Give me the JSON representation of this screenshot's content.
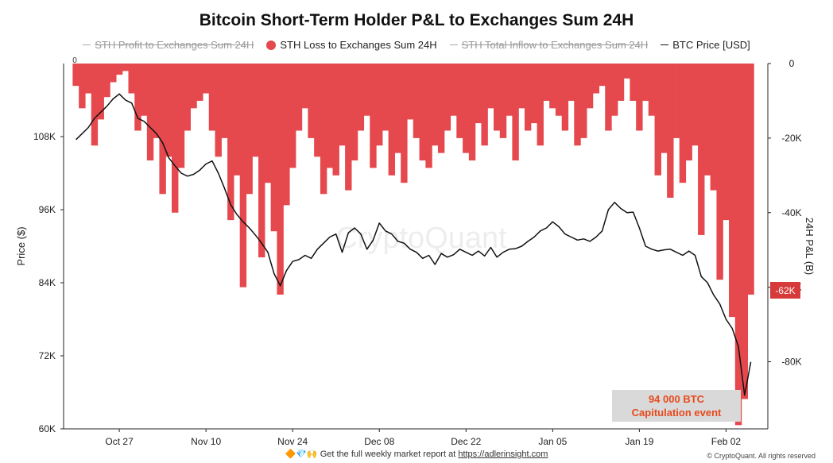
{
  "title": "Bitcoin Short-Term Holder P&L to Exchanges Sum 24H",
  "legend": [
    {
      "label": "STH Profit to Exchanges Sum 24H",
      "color": "#999999",
      "marker": "line",
      "hidden": true
    },
    {
      "label": "STH Loss to Exchanges Sum 24H",
      "color": "#e5484d",
      "marker": "dot",
      "hidden": false
    },
    {
      "label": "STH Total Inflow to  Exchanges Sum 24H",
      "color": "#999999",
      "marker": "line",
      "hidden": true
    },
    {
      "label": "BTC Price [USD]",
      "color": "#111111",
      "marker": "line",
      "hidden": false
    }
  ],
  "annotation": {
    "line1": "94 000 BTC",
    "line2": "Capitulation event",
    "color": "#e8491d"
  },
  "last_value_badge": "-62K",
  "watermark": "CryptoQuant",
  "footer": {
    "emoji": "🔶💎🙌",
    "text": "Get the full weekly market report at",
    "link": "https://adlerinsight.com"
  },
  "copyright": "© CryptoQuant. All rights reserved",
  "chart_data": {
    "type": "area",
    "title": "Bitcoin Short-Term Holder P&L to Exchanges Sum 24H",
    "xlabel": "",
    "x_ticks": [
      "Oct 27",
      "Nov 10",
      "Nov 24",
      "Dec 08",
      "Dec 22",
      "Jan 05",
      "Jan 19",
      "Feb 02"
    ],
    "y_left": {
      "label": "Price ($)",
      "ticks": [
        60000,
        72000,
        84000,
        96000,
        108000
      ],
      "tick_labels": [
        "60K",
        "72K",
        "84K",
        "96K",
        "108K"
      ],
      "range": [
        60000,
        120000
      ]
    },
    "y_right": {
      "label": "24H P&L (B)",
      "ticks": [
        0,
        -20000,
        -40000,
        -60000,
        -80000
      ],
      "tick_labels": [
        "0",
        "-20K",
        "-40K",
        "-60K",
        "-80K"
      ],
      "range": [
        -98000,
        0
      ]
    },
    "top_left_label": "0",
    "grid": false,
    "legend_position": "top-center",
    "dates": [
      "2025-10-20",
      "2025-10-21",
      "2025-10-22",
      "2025-10-23",
      "2025-10-24",
      "2025-10-25",
      "2025-10-26",
      "2025-10-27",
      "2025-10-28",
      "2025-10-29",
      "2025-10-30",
      "2025-10-31",
      "2025-11-01",
      "2025-11-02",
      "2025-11-03",
      "2025-11-04",
      "2025-11-05",
      "2025-11-06",
      "2025-11-07",
      "2025-11-08",
      "2025-11-09",
      "2025-11-10",
      "2025-11-11",
      "2025-11-12",
      "2025-11-13",
      "2025-11-14",
      "2025-11-15",
      "2025-11-16",
      "2025-11-17",
      "2025-11-18",
      "2025-11-19",
      "2025-11-20",
      "2025-11-21",
      "2025-11-22",
      "2025-11-23",
      "2025-11-24",
      "2025-11-25",
      "2025-11-26",
      "2025-11-27",
      "2025-11-28",
      "2025-11-29",
      "2025-11-30",
      "2025-12-01",
      "2025-12-02",
      "2025-12-03",
      "2025-12-04",
      "2025-12-05",
      "2025-12-06",
      "2025-12-07",
      "2025-12-08",
      "2025-12-09",
      "2025-12-10",
      "2025-12-11",
      "2025-12-12",
      "2025-12-13",
      "2025-12-14",
      "2025-12-15",
      "2025-12-16",
      "2025-12-17",
      "2025-12-18",
      "2025-12-19",
      "2025-12-20",
      "2025-12-21",
      "2025-12-22",
      "2025-12-23",
      "2025-12-24",
      "2025-12-25",
      "2025-12-26",
      "2025-12-27",
      "2025-12-28",
      "2025-12-29",
      "2025-12-30",
      "2025-12-31",
      "2026-01-01",
      "2026-01-02",
      "2026-01-03",
      "2026-01-04",
      "2026-01-05",
      "2026-01-06",
      "2026-01-07",
      "2026-01-08",
      "2026-01-09",
      "2026-01-10",
      "2026-01-11",
      "2026-01-12",
      "2026-01-13",
      "2026-01-14",
      "2026-01-15",
      "2026-01-16",
      "2026-01-17",
      "2026-01-18",
      "2026-01-19",
      "2026-01-20",
      "2026-01-21",
      "2026-01-22",
      "2026-01-23",
      "2026-01-24",
      "2026-01-25",
      "2026-01-26",
      "2026-01-27",
      "2026-01-28",
      "2026-01-29",
      "2026-01-30",
      "2026-01-31",
      "2026-02-01",
      "2026-02-02",
      "2026-02-03",
      "2026-02-04",
      "2026-02-05",
      "2026-02-06"
    ],
    "series": [
      {
        "name": "STH Loss to Exchanges Sum 24H",
        "axis": "right",
        "color": "#e5484d",
        "values": [
          -6000,
          -12000,
          -8000,
          -22000,
          -15000,
          -9000,
          -5000,
          -3000,
          -2000,
          -8000,
          -18000,
          -14000,
          -26000,
          -20000,
          -35000,
          -25000,
          -40000,
          -28000,
          -18000,
          -12000,
          -10000,
          -8000,
          -18000,
          -25000,
          -20000,
          -42000,
          -30000,
          -60000,
          -35000,
          -25000,
          -52000,
          -32000,
          -45000,
          -62000,
          -38000,
          -28000,
          -18000,
          -12000,
          -20000,
          -25000,
          -35000,
          -28000,
          -30000,
          -22000,
          -34000,
          -26000,
          -18000,
          -14000,
          -28000,
          -22000,
          -18000,
          -30000,
          -24000,
          -32000,
          -15000,
          -20000,
          -26000,
          -28000,
          -22000,
          -24000,
          -18000,
          -14000,
          -20000,
          -24000,
          -26000,
          -16000,
          -22000,
          -12000,
          -18000,
          -20000,
          -14000,
          -26000,
          -12000,
          -18000,
          -16000,
          -22000,
          -10000,
          -12000,
          -14000,
          -18000,
          -10000,
          -22000,
          -20000,
          -12000,
          -8000,
          -6000,
          -18000,
          -14000,
          -10000,
          -4000,
          -10000,
          -18000,
          -10000,
          -14000,
          -30000,
          -24000,
          -36000,
          -20000,
          -32000,
          -26000,
          -22000,
          -46000,
          -30000,
          -34000,
          -58000,
          -42000,
          -68000,
          -97000,
          -90000,
          -62000
        ]
      },
      {
        "name": "BTC Price [USD]",
        "axis": "left",
        "color": "#111111",
        "values": [
          107500,
          108500,
          109500,
          111000,
          112000,
          113000,
          114200,
          115000,
          114000,
          113500,
          111000,
          110500,
          109500,
          108500,
          107000,
          104500,
          103200,
          102000,
          101500,
          101800,
          102500,
          103500,
          104000,
          102000,
          99500,
          96800,
          95200,
          94000,
          93000,
          91800,
          90500,
          89000,
          85500,
          83500,
          86000,
          87500,
          87800,
          88500,
          88000,
          89500,
          90500,
          91500,
          92000,
          89000,
          92200,
          93000,
          92000,
          89500,
          91000,
          93800,
          92500,
          92000,
          90800,
          90500,
          89500,
          89000,
          88000,
          88500,
          87000,
          88800,
          88200,
          88600,
          89500,
          89000,
          88500,
          89200,
          88400,
          89800,
          88200,
          89000,
          89500,
          89600,
          90000,
          90800,
          91500,
          92500,
          93000,
          94000,
          93200,
          92000,
          91500,
          91000,
          91200,
          90800,
          91500,
          92500,
          96000,
          97200,
          96200,
          95500,
          95600,
          93000,
          90000,
          89500,
          89200,
          89400,
          89500,
          89000,
          88500,
          89200,
          88500,
          85000,
          84000,
          82000,
          80500,
          78000,
          76500,
          73500,
          65500,
          71000
        ]
      }
    ]
  }
}
